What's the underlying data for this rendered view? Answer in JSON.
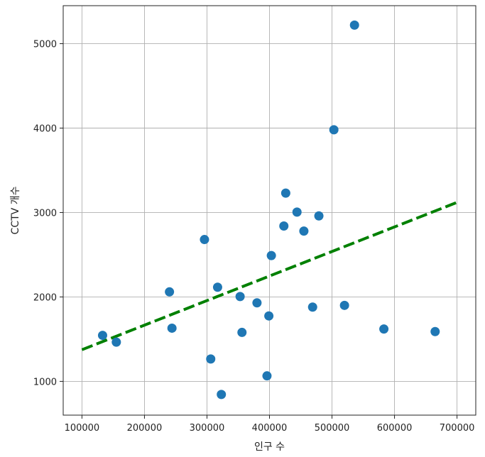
{
  "chart_data": {
    "type": "scatter",
    "xlabel": "인구 수",
    "ylabel": "CCTV 개수",
    "xlim": [
      70000,
      730000
    ],
    "ylim": [
      600,
      5450
    ],
    "xticks": [
      100000,
      200000,
      300000,
      400000,
      500000,
      600000,
      700000
    ],
    "yticks": [
      1000,
      2000,
      3000,
      4000,
      5000
    ],
    "xtick_labels": [
      "100000",
      "200000",
      "300000",
      "400000",
      "500000",
      "600000",
      "700000"
    ],
    "ytick_labels": [
      "1000",
      "2000",
      "3000",
      "4000",
      "5000"
    ],
    "grid": true,
    "points": [
      {
        "x": 133000,
        "y": 1545
      },
      {
        "x": 155000,
        "y": 1465
      },
      {
        "x": 240000,
        "y": 2060
      },
      {
        "x": 244000,
        "y": 1630
      },
      {
        "x": 296000,
        "y": 2680
      },
      {
        "x": 306000,
        "y": 1265
      },
      {
        "x": 317000,
        "y": 2115
      },
      {
        "x": 323000,
        "y": 845
      },
      {
        "x": 353000,
        "y": 2005
      },
      {
        "x": 356000,
        "y": 1580
      },
      {
        "x": 380000,
        "y": 1930
      },
      {
        "x": 396000,
        "y": 1065
      },
      {
        "x": 399000,
        "y": 1775
      },
      {
        "x": 403000,
        "y": 2490
      },
      {
        "x": 423000,
        "y": 2840
      },
      {
        "x": 426000,
        "y": 3230
      },
      {
        "x": 444000,
        "y": 3005
      },
      {
        "x": 455000,
        "y": 2780
      },
      {
        "x": 469000,
        "y": 1880
      },
      {
        "x": 479000,
        "y": 2960
      },
      {
        "x": 503000,
        "y": 3980
      },
      {
        "x": 520000,
        "y": 1900
      },
      {
        "x": 536000,
        "y": 5220
      },
      {
        "x": 583000,
        "y": 1620
      },
      {
        "x": 665000,
        "y": 1590
      }
    ],
    "trend_line": {
      "x": [
        100000,
        700000
      ],
      "y": [
        1375,
        3120
      ],
      "style": "dashed"
    },
    "colors": {
      "points": "#1f77b4",
      "trend_line": "#008000",
      "grid": "#b0b0b0"
    }
  }
}
